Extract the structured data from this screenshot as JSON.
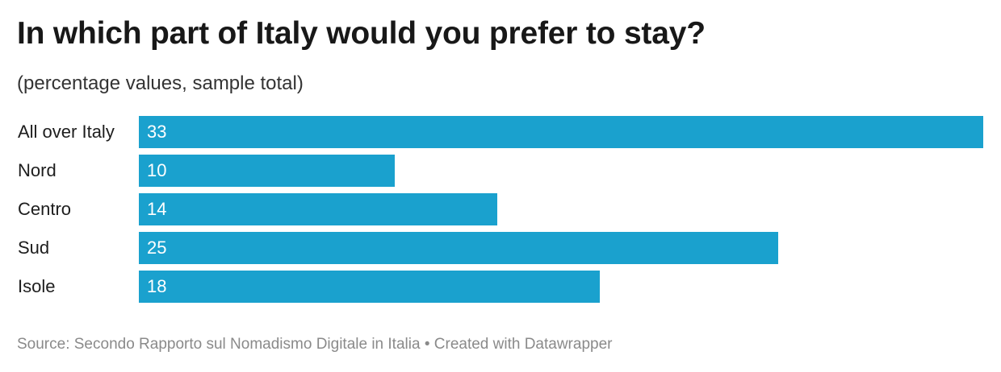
{
  "title": "In which part of Italy would you prefer to stay?",
  "subtitle": "(percentage values, sample total)",
  "footer": {
    "source": "Source: Secondo Rapporto sul Nomadismo Digitale in Italia",
    "separator": "•",
    "credit": "Created with Datawrapper"
  },
  "colors": {
    "bar": "#1aa1ce"
  },
  "chart_data": {
    "type": "bar",
    "orientation": "horizontal",
    "categories": [
      "All over Italy",
      "Nord",
      "Centro",
      "Sud",
      "Isole"
    ],
    "values": [
      33,
      10,
      14,
      25,
      18
    ],
    "value_labels": [
      "33",
      "10",
      "14",
      "25",
      "18"
    ],
    "title": "In which part of Italy would you prefer to stay?",
    "subtitle": "(percentage values, sample total)",
    "xlim": [
      0,
      33
    ],
    "grid": false,
    "legend": "none"
  }
}
